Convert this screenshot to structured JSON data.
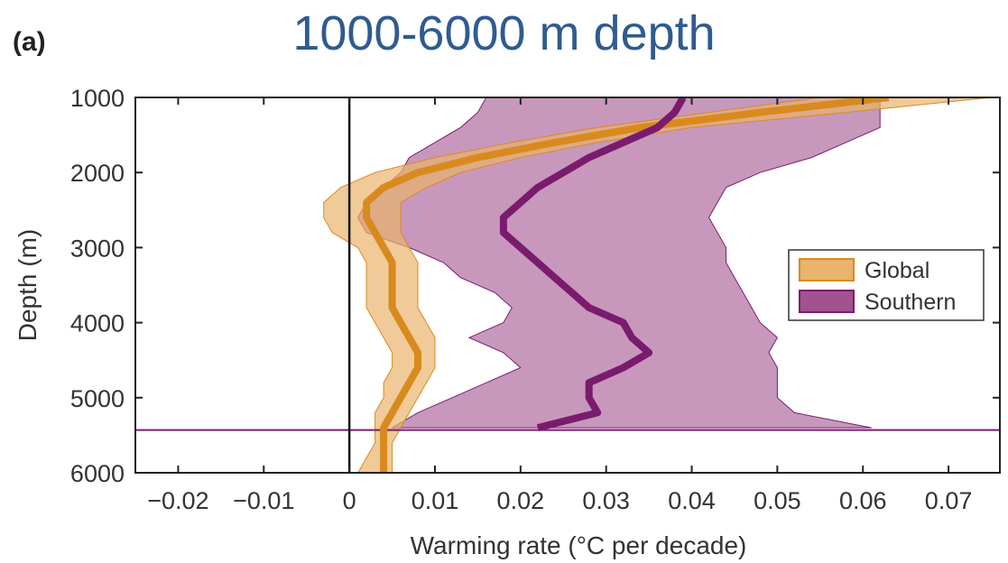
{
  "title": "1000-6000 m depth",
  "panel_label": "(a)",
  "colors": {
    "global_line": "#d98a1e",
    "global_band": "#e9b46c",
    "southern_line": "#7a1b6e",
    "southern_band": "#a2538f",
    "title": "#2f5b8f"
  },
  "chart_data": {
    "type": "line",
    "xlabel": "Warming rate (°C per decade)",
    "ylabel": "Depth (m)",
    "xlim": [
      -0.025,
      0.076
    ],
    "ylim": [
      6000,
      1000
    ],
    "y_inverted": true,
    "x_ticks": [
      -0.02,
      -0.01,
      0,
      0.01,
      0.02,
      0.03,
      0.04,
      0.05,
      0.06,
      0.07
    ],
    "x_tick_labels": [
      "−0.02",
      "−0.01",
      "0",
      "0.01",
      "0.02",
      "0.03",
      "0.04",
      "0.05",
      "0.06",
      "0.07"
    ],
    "y_ticks": [
      1000,
      2000,
      3000,
      4000,
      5000,
      6000
    ],
    "y_tick_labels": [
      "1000",
      "2000",
      "3000",
      "4000",
      "5000",
      "6000"
    ],
    "zero_line_x": 0,
    "legend_position": "right",
    "series": [
      {
        "name": "Global",
        "depth": [
          1000,
          1200,
          1400,
          1600,
          1800,
          2000,
          2200,
          2400,
          2600,
          2800,
          3000,
          3200,
          3400,
          3600,
          3800,
          4000,
          4200,
          4400,
          4600,
          4800,
          5000,
          5200,
          5400,
          5600,
          5800,
          6000
        ],
        "mean": [
          0.063,
          0.048,
          0.034,
          0.024,
          0.015,
          0.008,
          0.004,
          0.002,
          0.002,
          0.003,
          0.004,
          0.005,
          0.005,
          0.005,
          0.005,
          0.006,
          0.007,
          0.008,
          0.008,
          0.007,
          0.006,
          0.005,
          0.004,
          0.004,
          0.004,
          0.004
        ],
        "lower": [
          0.055,
          0.042,
          0.029,
          0.019,
          0.01,
          0.003,
          -0.001,
          -0.003,
          -0.003,
          -0.002,
          0.001,
          0.002,
          0.002,
          0.002,
          0.002,
          0.003,
          0.004,
          0.005,
          0.005,
          0.004,
          0.004,
          0.003,
          0.003,
          0.003,
          0.002,
          0.001
        ],
        "upper": [
          0.075,
          0.058,
          0.04,
          0.029,
          0.02,
          0.013,
          0.009,
          0.006,
          0.006,
          0.006,
          0.007,
          0.008,
          0.008,
          0.008,
          0.008,
          0.009,
          0.01,
          0.01,
          0.01,
          0.009,
          0.008,
          0.007,
          0.006,
          0.005,
          0.005,
          0.005
        ]
      },
      {
        "name": "Southern",
        "depth": [
          1000,
          1200,
          1400,
          1600,
          1800,
          2000,
          2200,
          2400,
          2600,
          2800,
          3000,
          3200,
          3400,
          3600,
          3800,
          4000,
          4200,
          4400,
          4600,
          4800,
          5000,
          5200,
          5400
        ],
        "mean": [
          0.039,
          0.038,
          0.036,
          0.032,
          0.028,
          0.025,
          0.022,
          0.02,
          0.018,
          0.018,
          0.02,
          0.022,
          0.024,
          0.026,
          0.028,
          0.032,
          0.033,
          0.035,
          0.032,
          0.028,
          0.028,
          0.029,
          0.022
        ],
        "lower": [
          0.016,
          0.015,
          0.013,
          0.01,
          0.007,
          0.006,
          0.004,
          0.002,
          0.001,
          0.002,
          0.007,
          0.011,
          0.013,
          0.017,
          0.019,
          0.018,
          0.014,
          0.018,
          0.02,
          0.016,
          0.012,
          0.008,
          0.005
        ],
        "upper": [
          0.062,
          0.062,
          0.062,
          0.058,
          0.054,
          0.048,
          0.044,
          0.043,
          0.042,
          0.043,
          0.044,
          0.044,
          0.045,
          0.046,
          0.047,
          0.048,
          0.05,
          0.049,
          0.05,
          0.05,
          0.05,
          0.052,
          0.061
        ]
      }
    ],
    "reference_line": {
      "depth": 5430,
      "from_x": -0.025,
      "to_x": 0.076
    }
  }
}
